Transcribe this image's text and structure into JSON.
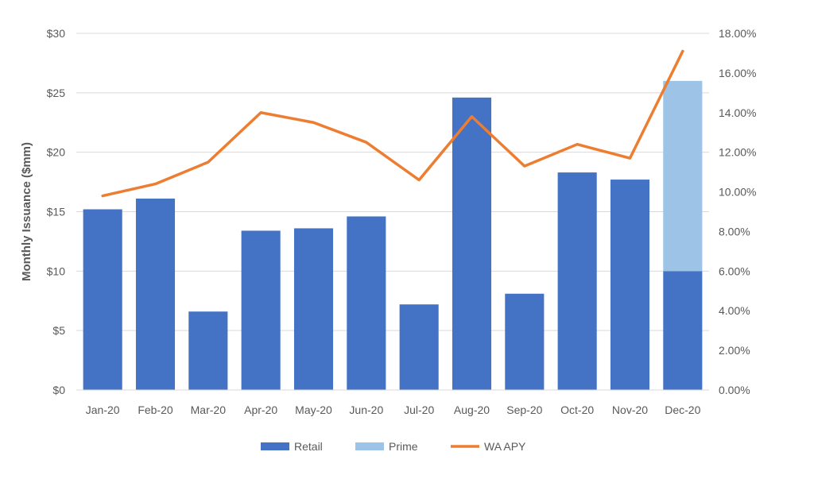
{
  "chart_data": {
    "type": "bar",
    "title": "",
    "categories": [
      "Jan-20",
      "Feb-20",
      "Mar-20",
      "Apr-20",
      "May-20",
      "Jun-20",
      "Jul-20",
      "Aug-20",
      "Sep-20",
      "Oct-20",
      "Nov-20",
      "Dec-20"
    ],
    "series": [
      {
        "name": "Retail",
        "type": "bar",
        "stack": "issuance",
        "axis": "left",
        "color": "#4472C4",
        "values": [
          15.2,
          16.1,
          6.6,
          13.4,
          13.6,
          14.6,
          7.2,
          24.6,
          8.1,
          18.3,
          17.7,
          10.0
        ]
      },
      {
        "name": "Prime",
        "type": "bar",
        "stack": "issuance",
        "axis": "left",
        "color": "#9DC3E6",
        "values": [
          0,
          0,
          0,
          0,
          0,
          0,
          0,
          0,
          0,
          0,
          0,
          16.0
        ]
      },
      {
        "name": "WA APY",
        "type": "line",
        "axis": "right",
        "color": "#ED7D31",
        "values": [
          9.8,
          10.4,
          11.5,
          14.0,
          13.5,
          12.5,
          10.6,
          13.8,
          11.3,
          12.4,
          11.7,
          17.1
        ]
      }
    ],
    "ylabel": "Monthly Issuance ($mm)",
    "ylim": [
      0,
      30
    ],
    "y2lim": [
      0,
      18
    ],
    "y_ticks": [
      "$0",
      "$5",
      "$10",
      "$15",
      "$20",
      "$25",
      "$30"
    ],
    "y2_ticks": [
      "0.00%",
      "2.00%",
      "4.00%",
      "6.00%",
      "8.00%",
      "10.00%",
      "12.00%",
      "14.00%",
      "16.00%",
      "18.00%"
    ],
    "grid": true,
    "legend_position": "bottom"
  }
}
